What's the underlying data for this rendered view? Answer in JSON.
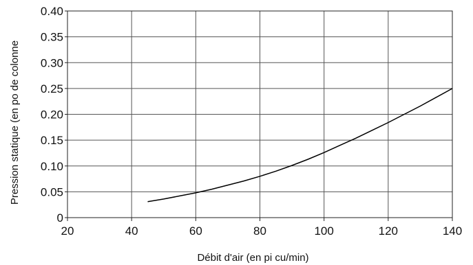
{
  "chart_data": {
    "type": "line",
    "title": "",
    "xlabel": "Débit d'air (en pi cu/min)",
    "ylabel": "Pression statique (en  po de colonne",
    "xlim": [
      20,
      140
    ],
    "ylim": [
      0,
      0.4
    ],
    "x_ticks": [
      "20",
      "40",
      "60",
      "80",
      "100",
      "120",
      "140"
    ],
    "y_ticks": [
      "0",
      "0.05",
      "0.10",
      "0.15",
      "0.20",
      "0.25",
      "0.30",
      "0.35",
      "0.40"
    ],
    "grid": true,
    "series": [
      {
        "x": [
          45,
          50,
          55,
          60,
          65,
          70,
          75,
          80,
          85,
          90,
          95,
          100,
          105,
          110,
          115,
          120,
          125,
          130,
          135,
          140
        ],
        "y": [
          0.031,
          0.036,
          0.042,
          0.048,
          0.055,
          0.063,
          0.071,
          0.08,
          0.09,
          0.101,
          0.113,
          0.126,
          0.14,
          0.154,
          0.169,
          0.184,
          0.2,
          0.216,
          0.233,
          0.25
        ],
        "color": "#000000"
      }
    ]
  }
}
